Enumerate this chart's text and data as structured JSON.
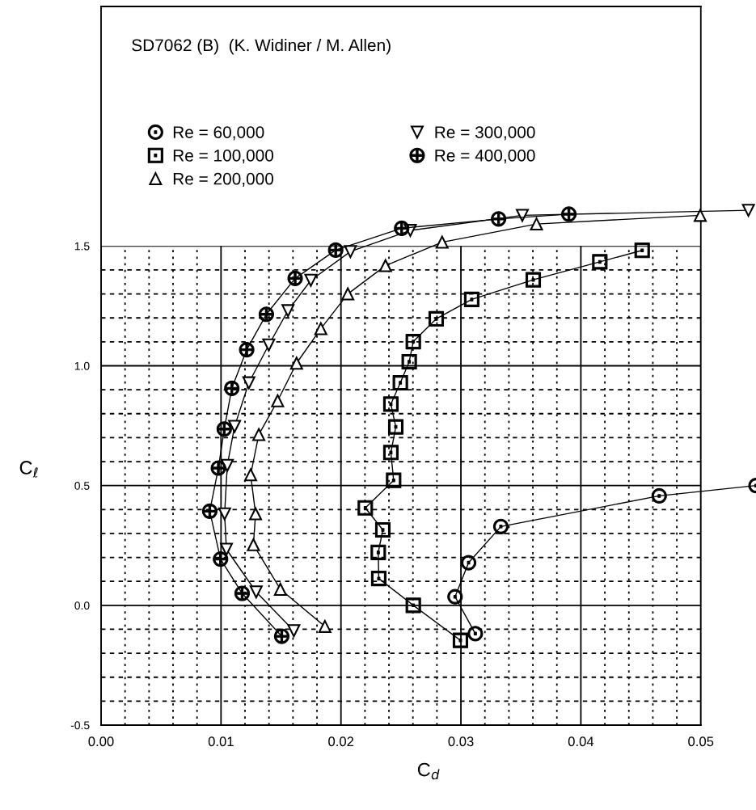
{
  "chart_data": {
    "type": "line",
    "title": "SD7062 (B)  (K. Widiner / M. Allen)",
    "xlabel": "C$_{d}$",
    "ylabel": "C$_{ℓ}$",
    "series": [
      {
        "name": "Re = 60,000",
        "color": "#000000",
        "marker": "circle",
        "x": [
          0.0312,
          0.02951,
          0.03064,
          0.03333,
          0.04653,
          0.0546
        ],
        "values": [
          -0.118,
          0.036,
          0.178,
          0.329,
          0.457,
          0.5
        ]
      },
      {
        "name": "Re = 100,000",
        "color": "#000000",
        "marker": "square",
        "x": [
          0.02996,
          0.02603,
          0.02315,
          0.02311,
          0.02349,
          0.02203,
          0.02439,
          0.02416,
          0.02457,
          0.02416,
          0.02495,
          0.02569,
          0.02603,
          0.02794,
          0.0309,
          0.03603,
          0.04158,
          0.04511
        ],
        "values": [
          -0.146,
          0.0,
          0.112,
          0.221,
          0.315,
          0.407,
          0.522,
          0.638,
          0.745,
          0.84,
          0.929,
          1.017,
          1.101,
          1.196,
          1.277,
          1.359,
          1.434,
          1.482
        ]
      },
      {
        "name": "Re = 200,000",
        "color": "#000000",
        "marker": "triangle",
        "x": [
          0.01866,
          0.01495,
          0.0127,
          0.01288,
          0.01247,
          0.01315,
          0.01472,
          0.0163,
          0.01832,
          0.02057,
          0.02371,
          0.02843,
          0.0363,
          0.04995
        ],
        "values": [
          -0.088,
          0.067,
          0.253,
          0.382,
          0.545,
          0.713,
          0.854,
          1.011,
          1.155,
          1.3,
          1.418,
          1.516,
          1.592,
          1.628
        ]
      },
      {
        "name": "Re = 300,000",
        "color": "#000000",
        "marker": "triangle_down",
        "x": [
          0.01607,
          0.01293,
          0.01045,
          0.0103,
          0.01052,
          0.01113,
          0.01232,
          0.01398,
          0.01558,
          0.01749,
          0.02079,
          0.02578,
          0.03512,
          0.05397
        ],
        "values": [
          -0.106,
          0.056,
          0.234,
          0.382,
          0.584,
          0.747,
          0.929,
          1.087,
          1.23,
          1.357,
          1.477,
          1.565,
          1.628,
          1.649
        ]
      },
      {
        "name": "Re = 400,000",
        "color": "#000000",
        "marker": "cross",
        "x": [
          0.01506,
          0.01176,
          0.00996,
          0.00906,
          0.00978,
          0.01027,
          0.0109,
          0.01214,
          0.01378,
          0.01618,
          0.01956,
          0.02506,
          0.03314,
          0.039
        ],
        "values": [
          -0.129,
          0.05,
          0.193,
          0.393,
          0.573,
          0.736,
          0.906,
          1.067,
          1.215,
          1.365,
          1.483,
          1.574,
          1.613,
          1.633
        ]
      }
    ],
    "xlim": [
      0,
      0.0546
    ],
    "ylim": [
      -0.5,
      2.5
    ],
    "xticks": [
      {
        "value": 0,
        "label": "0.00"
      },
      {
        "value": 0.002,
        "label": null
      },
      {
        "value": 0.004,
        "label": null
      },
      {
        "value": 0.006,
        "label": null
      },
      {
        "value": 0.008,
        "label": null
      },
      {
        "value": 0.01,
        "label": "0.01"
      },
      {
        "value": 0.012,
        "label": null
      },
      {
        "value": 0.014,
        "label": null
      },
      {
        "value": 0.016,
        "label": null
      },
      {
        "value": 0.018,
        "label": null
      },
      {
        "value": 0.02,
        "label": "0.02"
      },
      {
        "value": 0.022,
        "label": null
      },
      {
        "value": 0.024,
        "label": null
      },
      {
        "value": 0.026,
        "label": null
      },
      {
        "value": 0.028,
        "label": null
      },
      {
        "value": 0.03,
        "label": "0.03"
      },
      {
        "value": 0.032,
        "label": null
      },
      {
        "value": 0.034,
        "label": null
      },
      {
        "value": 0.036,
        "label": null
      },
      {
        "value": 0.038,
        "label": null
      },
      {
        "value": 0.04,
        "label": "0.04"
      },
      {
        "value": 0.042,
        "label": null
      },
      {
        "value": 0.044,
        "label": null
      },
      {
        "value": 0.046,
        "label": null
      },
      {
        "value": 0.048,
        "label": null
      },
      {
        "value": 0.05,
        "label": "0.05"
      }
    ],
    "yticks": [
      {
        "value": -0.5,
        "label": "-0.5"
      },
      {
        "value": -0.4,
        "label": null
      },
      {
        "value": -0.3,
        "label": null
      },
      {
        "value": -0.2,
        "label": null
      },
      {
        "value": -0.1,
        "label": null
      },
      {
        "value": 0,
        "label": "0.0"
      },
      {
        "value": 0.1,
        "label": null
      },
      {
        "value": 0.2,
        "label": null
      },
      {
        "value": 0.3,
        "label": null
      },
      {
        "value": 0.4,
        "label": null
      },
      {
        "value": 0.5,
        "label": "0.5"
      },
      {
        "value": 0.6,
        "label": null
      },
      {
        "value": 0.7,
        "label": null
      },
      {
        "value": 0.8,
        "label": null
      },
      {
        "value": 0.9,
        "label": null
      },
      {
        "value": 1.0,
        "label": "1.0"
      },
      {
        "value": 1.1,
        "label": null
      },
      {
        "value": 1.2,
        "label": null
      },
      {
        "value": 1.3,
        "label": null
      },
      {
        "value": 1.4,
        "label": null
      },
      {
        "value": 1.5,
        "label": "1.5"
      }
    ],
    "grid": true,
    "legend": "top left",
    "line_style": "solid"
  }
}
